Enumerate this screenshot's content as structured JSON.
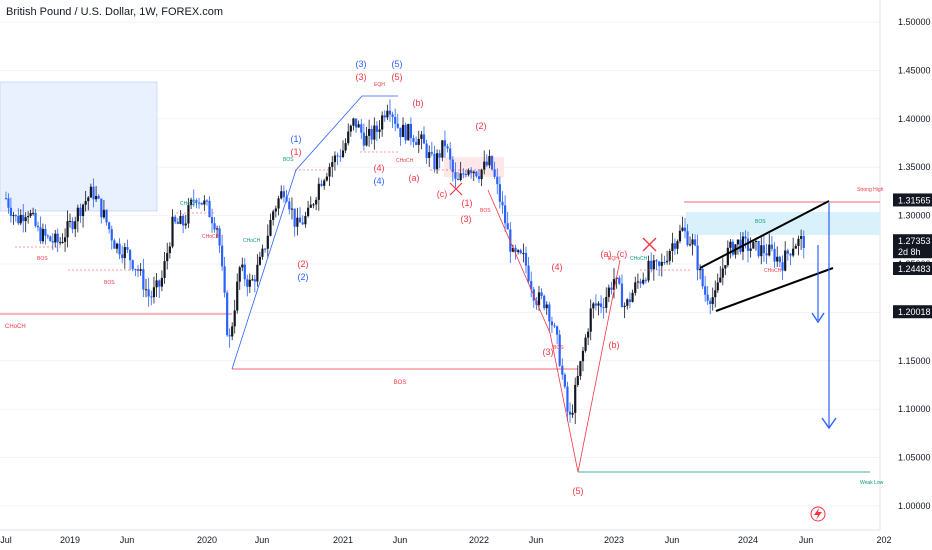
{
  "header": {
    "title": "British Pound / U.S. Dollar, 1W, FOREX.com"
  },
  "colors": {
    "up": "#131722",
    "down": "#2962ff",
    "red": "#f23645",
    "blue": "#2962ff",
    "teal": "#089981",
    "zone": "#dbeafe",
    "grid": "#f0f3fa",
    "text": "#131722"
  },
  "chart_data": {
    "type": "candlestick",
    "symbol": "British Pound / U.S. Dollar",
    "timeframe": "1W",
    "source": "FOREX.com",
    "ylim": [
      1.0,
      1.5
    ],
    "y_ticks": [
      "1.50000",
      "1.45000",
      "1.40000",
      "1.35000",
      "1.30000",
      "1.25000",
      "1.20000",
      "1.15000",
      "1.10000",
      "1.05000",
      "1.00000"
    ],
    "x_ticks": [
      "Jul",
      "2019",
      "Jun",
      "2020",
      "Jun",
      "2021",
      "Jun",
      "2022",
      "Jun",
      "2023",
      "Jun",
      "2024",
      "Jun",
      "202"
    ],
    "price_labels": [
      {
        "text": "1.31565",
        "value": 1.31565,
        "style": "dark"
      },
      {
        "text": "1.27353",
        "value": 1.27353,
        "style": "dark",
        "sub": "2d 8h"
      },
      {
        "text": "1.24483",
        "value": 1.24483,
        "style": "dark"
      },
      {
        "text": "1.20018",
        "value": 1.20018,
        "style": "dark"
      }
    ],
    "close_path": [
      [
        "2018-07",
        1.318
      ],
      [
        "2018-08",
        1.295
      ],
      [
        "2018-09",
        1.307
      ],
      [
        "2018-10",
        1.283
      ],
      [
        "2018-11",
        1.275
      ],
      [
        "2018-12",
        1.272
      ],
      [
        "2019-01",
        1.29
      ],
      [
        "2019-02",
        1.31
      ],
      [
        "2019-03",
        1.325
      ],
      [
        "2019-04",
        1.3
      ],
      [
        "2019-05",
        1.27
      ],
      [
        "2019-06",
        1.262
      ],
      [
        "2019-07",
        1.244
      ],
      [
        "2019-08",
        1.215
      ],
      [
        "2019-09",
        1.23
      ],
      [
        "2019-10",
        1.29
      ],
      [
        "2019-11",
        1.292
      ],
      [
        "2019-12",
        1.322
      ],
      [
        "2020-01",
        1.308
      ],
      [
        "2020-02",
        1.288
      ],
      [
        "2020-03",
        1.165
      ],
      [
        "2020-04",
        1.245
      ],
      [
        "2020-05",
        1.228
      ],
      [
        "2020-06",
        1.255
      ],
      [
        "2020-07",
        1.305
      ],
      [
        "2020-08",
        1.33
      ],
      [
        "2020-09",
        1.288
      ],
      [
        "2020-10",
        1.3
      ],
      [
        "2020-11",
        1.335
      ],
      [
        "2020-12",
        1.355
      ],
      [
        "2021-01",
        1.368
      ],
      [
        "2021-02",
        1.398
      ],
      [
        "2021-03",
        1.378
      ],
      [
        "2021-04",
        1.388
      ],
      [
        "2021-05",
        1.418
      ],
      [
        "2021-06",
        1.388
      ],
      [
        "2021-07",
        1.385
      ],
      [
        "2021-08",
        1.375
      ],
      [
        "2021-09",
        1.352
      ],
      [
        "2021-10",
        1.375
      ],
      [
        "2021-11",
        1.33
      ],
      [
        "2021-12",
        1.352
      ],
      [
        "2022-01",
        1.345
      ],
      [
        "2022-02",
        1.355
      ],
      [
        "2022-03",
        1.31
      ],
      [
        "2022-04",
        1.258
      ],
      [
        "2022-05",
        1.255
      ],
      [
        "2022-06",
        1.215
      ],
      [
        "2022-07",
        1.21
      ],
      [
        "2022-08",
        1.165
      ],
      [
        "2022-09",
        1.085
      ],
      [
        "2022-10",
        1.145
      ],
      [
        "2022-11",
        1.205
      ],
      [
        "2022-12",
        1.21
      ],
      [
        "2023-01",
        1.235
      ],
      [
        "2023-02",
        1.205
      ],
      [
        "2023-03",
        1.23
      ],
      [
        "2023-04",
        1.245
      ],
      [
        "2023-05",
        1.245
      ],
      [
        "2023-06",
        1.27
      ],
      [
        "2023-07",
        1.285
      ],
      [
        "2023-08",
        1.27
      ],
      [
        "2023-09",
        1.22
      ],
      [
        "2023-10",
        1.215
      ],
      [
        "2023-11",
        1.26
      ],
      [
        "2023-12",
        1.272
      ],
      [
        "2024-01",
        1.268
      ],
      [
        "2024-02",
        1.265
      ],
      [
        "2024-03",
        1.262
      ],
      [
        "2024-04",
        1.252
      ],
      [
        "2024-05",
        1.272
      ],
      [
        "2024-06",
        1.274
      ]
    ],
    "annotations": [
      "BOS",
      "CHoCH",
      "Strong High",
      "Weak Low",
      "EQH",
      "(1)",
      "(2)",
      "(3)",
      "(4)",
      "(5)",
      "(a)",
      "(b)",
      "(c)"
    ]
  }
}
